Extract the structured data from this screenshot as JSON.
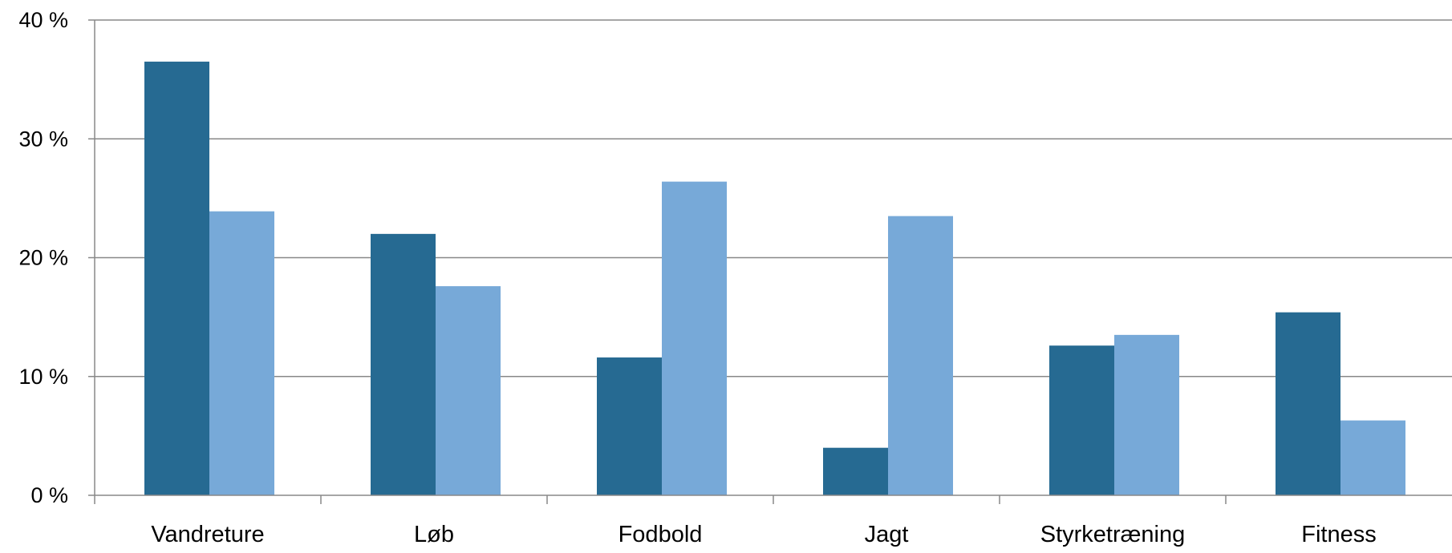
{
  "chart_data": {
    "type": "bar",
    "title": "",
    "xlabel": "",
    "ylabel": "",
    "categories": [
      "Vandreture",
      "Løb",
      "Fodbold",
      "Jagt",
      "Styrketræning",
      "Fitness"
    ],
    "series": [
      {
        "values": [
          36.5,
          22.0,
          11.6,
          4.0,
          12.6,
          15.4
        ]
      },
      {
        "values": [
          23.9,
          17.6,
          26.4,
          23.5,
          13.5,
          6.3
        ]
      }
    ],
    "ylim": [
      0,
      40
    ],
    "yticks": [
      {
        "value": 0,
        "label": "0 %"
      },
      {
        "value": 10,
        "label": "10 %"
      },
      {
        "value": 20,
        "label": "20 %"
      },
      {
        "value": 30,
        "label": "30 %"
      },
      {
        "value": 40,
        "label": "40 %"
      }
    ],
    "grid": true,
    "legend": "none",
    "colors": [
      "#266a92",
      "#77a9d8"
    ],
    "grid_color": "#888888",
    "axis_color": "#888888"
  }
}
